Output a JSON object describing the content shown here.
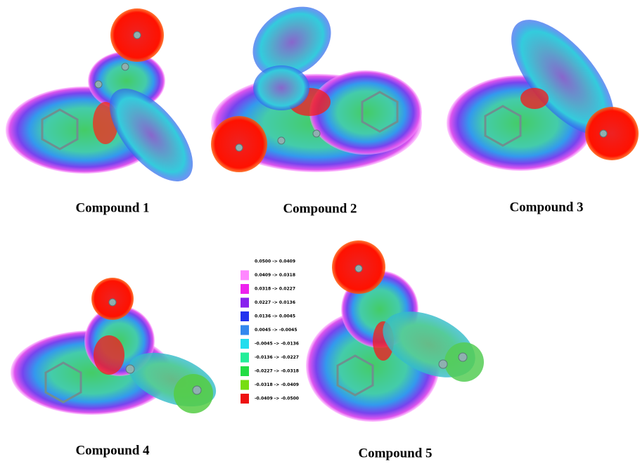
{
  "labels": [
    "Compound 1",
    "Compound 2",
    "Compound 3",
    "Compound 4",
    "Compound 5"
  ],
  "legend": [
    {
      "label": "0.0500 -> 0.0409",
      "color": "#ffffff"
    },
    {
      "label": "0.0409 -> 0.0318",
      "color": "#ff88ff"
    },
    {
      "label": "0.0318 -> 0.0227",
      "color": "#ee22ee"
    },
    {
      "label": "0.0227 -> 0.0136",
      "color": "#8822ee"
    },
    {
      "label": "0.0136 -> 0.0045",
      "color": "#2233ee"
    },
    {
      "label": "0.0045 -> -0.0045",
      "color": "#3388ee"
    },
    {
      "label": "-0.0045 -> -0.0136",
      "color": "#22ddee"
    },
    {
      "label": "-0.0136 -> -0.0227",
      "color": "#22ee99"
    },
    {
      "label": "-0.0227 -> -0.0318",
      "color": "#22dd44"
    },
    {
      "label": "-0.0318 -> -0.0409",
      "color": "#77dd11"
    },
    {
      "label": "-0.0409 -> -0.0500",
      "color": "#ee1111"
    }
  ]
}
